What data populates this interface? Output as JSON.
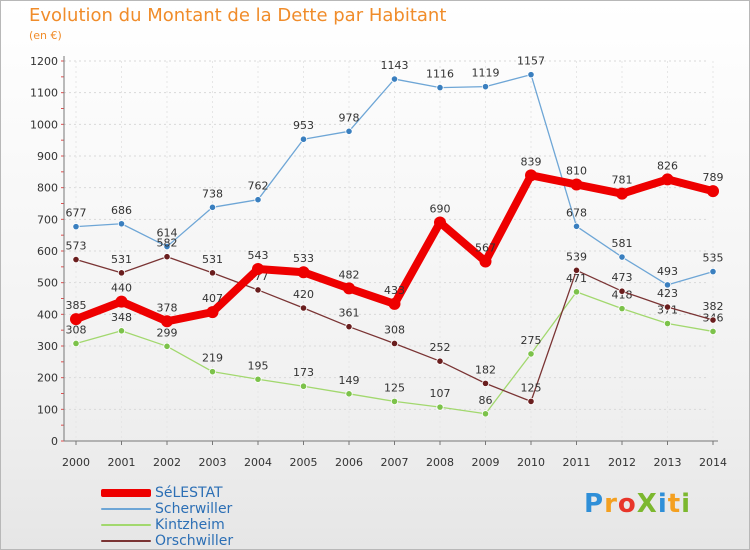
{
  "title": "Evolution du Montant de la Dette par Habitant",
  "subtitle": "(en €)",
  "logo": {
    "text": "ProXiti",
    "letter_colors": [
      "#2f8fd8",
      "#f4a020",
      "#e8352a",
      "#7cb82f",
      "#2f8fd8",
      "#f4a020",
      "#7cb82f"
    ]
  },
  "chart_data": {
    "type": "line",
    "categories": [
      "2000",
      "2001",
      "2002",
      "2003",
      "2004",
      "2005",
      "2006",
      "2007",
      "2008",
      "2009",
      "2010",
      "2011",
      "2012",
      "2013",
      "2014"
    ],
    "ylim": [
      0,
      1200
    ],
    "yticks": [
      0,
      100,
      200,
      300,
      400,
      500,
      600,
      700,
      800,
      900,
      1000,
      1100,
      1200
    ],
    "grid": true,
    "legend_position": "bottom-left",
    "series": [
      {
        "name": "Scherwiller",
        "color": "#6ea6d6",
        "marker": "#3a7fbf",
        "width": 1.3,
        "r": 3.2,
        "values": [
          677,
          686,
          614,
          738,
          762,
          953,
          978,
          1143,
          1116,
          1119,
          1157,
          678,
          581,
          493,
          535
        ]
      },
      {
        "name": "Kintzheim",
        "color": "#a2d86e",
        "marker": "#7cc24a",
        "width": 1.3,
        "r": 3.2,
        "values": [
          308,
          348,
          299,
          219,
          195,
          173,
          149,
          125,
          107,
          86,
          275,
          471,
          418,
          371,
          346
        ]
      },
      {
        "name": "Orschwiller",
        "color": "#7a3434",
        "marker": "#6a1e1e",
        "width": 1.3,
        "r": 3.2,
        "values": [
          573,
          531,
          582,
          531,
          477,
          420,
          361,
          308,
          252,
          182,
          125,
          539,
          473,
          423,
          382
        ]
      },
      {
        "name": "SéLESTAT",
        "color": "#ee0000",
        "marker": "#ee0000",
        "width": 8,
        "r": 6,
        "values": [
          385,
          440,
          378,
          407,
          543,
          533,
          482,
          433,
          690,
          567,
          839,
          810,
          781,
          826,
          789
        ]
      }
    ],
    "legend_order": [
      "SéLESTAT",
      "Scherwiller",
      "Kintzheim",
      "Orschwiller"
    ]
  }
}
